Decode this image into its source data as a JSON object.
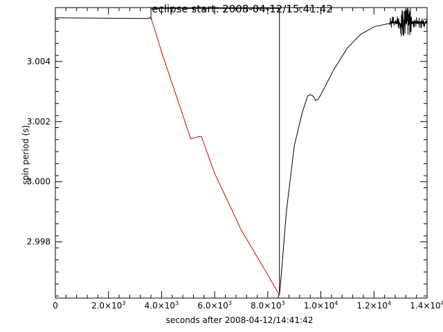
{
  "chart_data": {
    "type": "line",
    "title": "eclipse start: 2008-04-12/15:41:42",
    "xlabel": "seconds after 2008-04-12/14:41:42",
    "ylabel": "spin period (s)",
    "xlim": [
      0,
      14000
    ],
    "ylim": [
      2.99613,
      3.00579
    ],
    "x_ticks": [
      {
        "value": 0,
        "mant": "0",
        "exp": ""
      },
      {
        "value": 2000,
        "mant": "2.0×10",
        "exp": "3"
      },
      {
        "value": 4000,
        "mant": "4.0×10",
        "exp": "3"
      },
      {
        "value": 6000,
        "mant": "6.0×10",
        "exp": "3"
      },
      {
        "value": 8000,
        "mant": "8.0×10",
        "exp": "3"
      },
      {
        "value": 10000,
        "mant": "1.0×10",
        "exp": "4"
      },
      {
        "value": 12000,
        "mant": "1.2×10",
        "exp": "4"
      },
      {
        "value": 14000,
        "mant": "1.4×10",
        "exp": "4"
      }
    ],
    "y_ticks": [
      {
        "value": 2.998,
        "label": "2.998"
      },
      {
        "value": 3.0,
        "label": "3.000"
      },
      {
        "value": 3.002,
        "label": "3.002"
      },
      {
        "value": 3.004,
        "label": "3.004"
      }
    ],
    "grid": false,
    "series": [
      {
        "color": "#000000",
        "segment": "pre-eclipse",
        "points": [
          [
            0,
            3.00545
          ],
          [
            3500,
            3.00543
          ],
          [
            3590,
            3.00546
          ],
          [
            3620,
            3.0054
          ]
        ]
      },
      {
        "color": "#000000",
        "segment": "step",
        "points": [
          [
            3600,
            3.0054
          ],
          [
            3600,
            3.00576
          ],
          [
            8440,
            3.00576
          ],
          [
            8440,
            2.9963
          ]
        ]
      },
      {
        "color": "#cc0000",
        "segment": "eclipse",
        "points": [
          [
            3620,
            3.0054
          ],
          [
            4000,
            3.00432
          ],
          [
            4500,
            3.003
          ],
          [
            5000,
            3.00168
          ],
          [
            5100,
            3.00142
          ],
          [
            5200,
            3.00145
          ],
          [
            5400,
            3.0015
          ],
          [
            5500,
            3.0015
          ],
          [
            6000,
            3.00028
          ],
          [
            7000,
            2.9984
          ],
          [
            8000,
            2.9969
          ],
          [
            8440,
            2.99623
          ]
        ]
      },
      {
        "color": "#000000",
        "segment": "recovery",
        "points": [
          [
            8440,
            2.99623
          ],
          [
            8500,
            2.9968
          ],
          [
            8700,
            2.999
          ],
          [
            9000,
            3.0012
          ],
          [
            9300,
            3.0023
          ],
          [
            9500,
            3.00285
          ],
          [
            9600,
            3.0029
          ],
          [
            9700,
            3.00285
          ],
          [
            9800,
            3.0027
          ],
          [
            9900,
            3.00275
          ],
          [
            10000,
            3.0029
          ],
          [
            10500,
            3.00375
          ],
          [
            11000,
            3.00445
          ],
          [
            11500,
            3.0049
          ],
          [
            12000,
            3.00515
          ],
          [
            12500,
            3.00525
          ],
          [
            12700,
            3.00528
          ]
        ]
      }
    ],
    "noise_band": {
      "x_start": 12600,
      "x_end": 14000,
      "y_center": 3.0053,
      "half_width": 0.0002,
      "dense_x": [
        13000,
        13400
      ],
      "dense_half_width": 0.00048
    }
  }
}
